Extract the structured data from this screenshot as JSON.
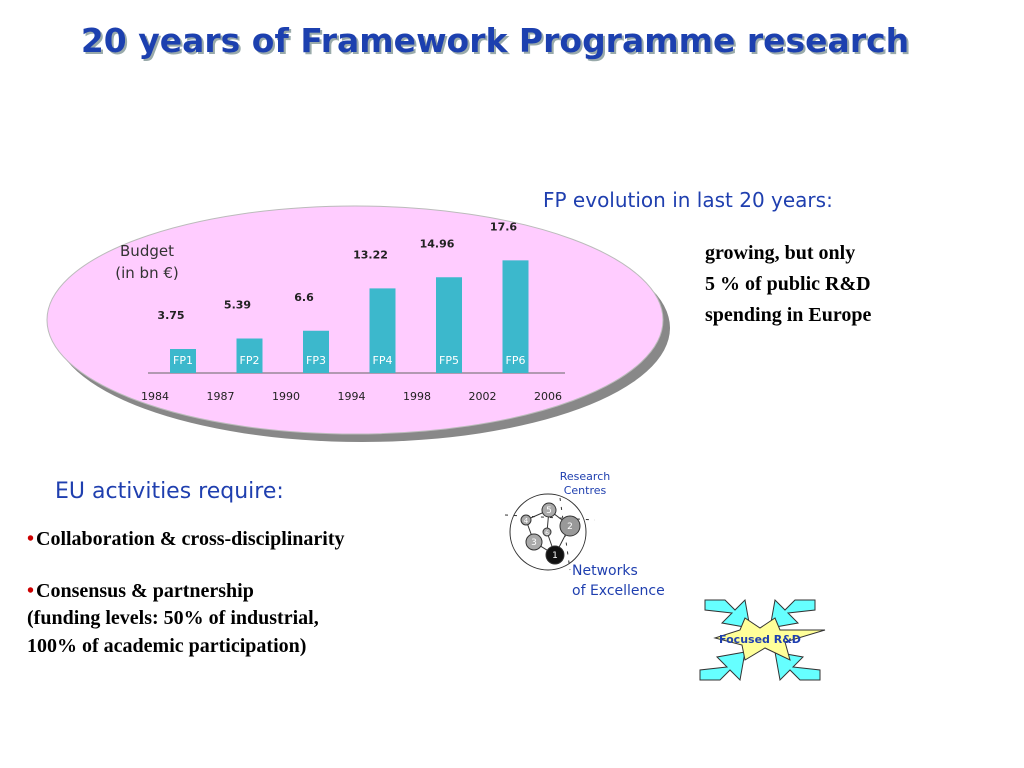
{
  "title": "20 years of Framework Programme research",
  "evolution": {
    "heading": "FP evolution in last 20 years:",
    "lines": [
      "growing, but only",
      "5 % of public R&D",
      "spending in Europe"
    ]
  },
  "chart_data": {
    "type": "bar",
    "label_lines": [
      "Budget",
      "(in bn €)"
    ],
    "categories": [
      "FP1",
      "FP2",
      "FP3",
      "FP4",
      "FP5",
      "FP6"
    ],
    "values": [
      3.75,
      5.39,
      6.6,
      13.22,
      14.96,
      17.6
    ],
    "years": [
      "1984",
      "1987",
      "1990",
      "1994",
      "1998",
      "2002",
      "2006"
    ],
    "color": "#3cb8cc"
  },
  "activities": {
    "heading": "EU activities require:",
    "bullet_1": "Collaboration & cross-disciplinarity",
    "bullet_2_lines": [
      "Consensus & partnership",
      "(funding levels: 50% of industrial,",
      "100% of academic participation)"
    ]
  },
  "network": {
    "label_lines": [
      "Research",
      "Centres"
    ],
    "nodes": [
      "5",
      "4",
      "6",
      "2",
      "3",
      "1"
    ],
    "caption_lines": [
      "Networks",
      "of Excellence"
    ]
  },
  "focused": {
    "label": "Focused R&D"
  }
}
